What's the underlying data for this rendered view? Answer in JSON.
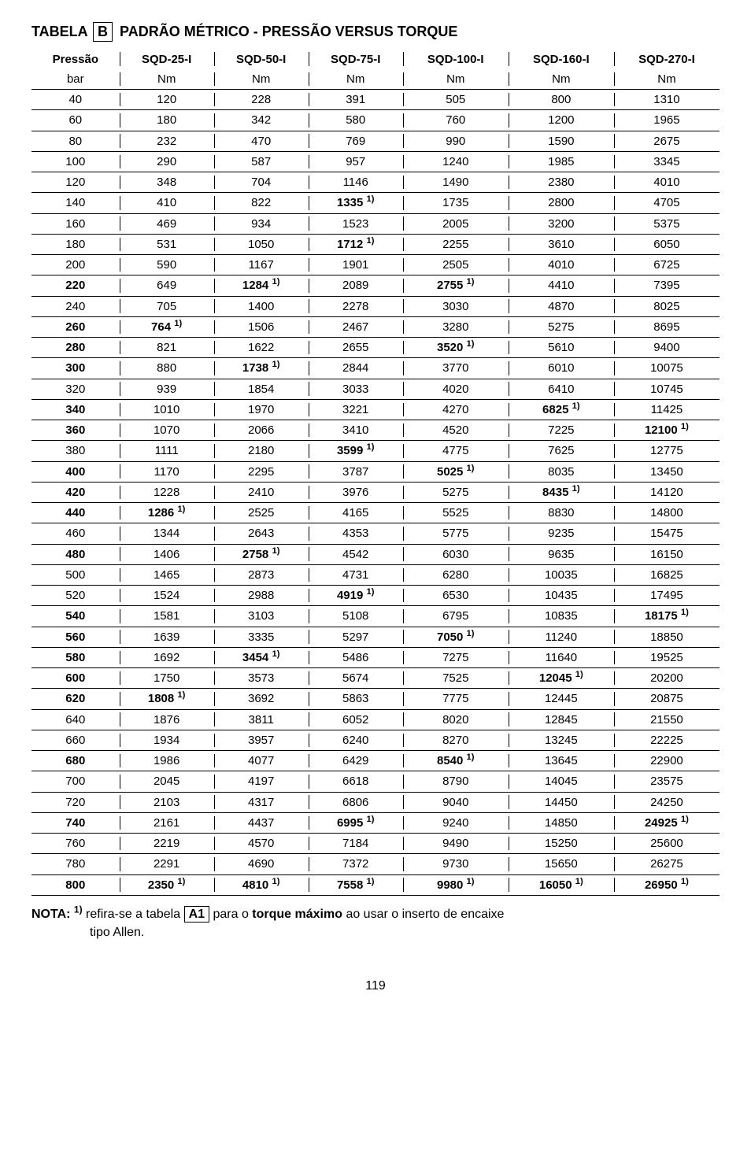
{
  "title_parts": {
    "pre": "TABELA",
    "box": "B",
    "post": "PADRÃO  MÉTRICO - PRESSÃO VERSUS TORQUE"
  },
  "table": {
    "header_row1": [
      "Pressão",
      "SQD-25-I",
      "SQD-50-I",
      "SQD-75-I",
      "SQD-100-I",
      "SQD-160-I",
      "SQD-270-I"
    ],
    "header_row2": [
      "bar",
      "Nm",
      "Nm",
      "Nm",
      "Nm",
      "Nm",
      "Nm"
    ],
    "rows": [
      {
        "c": [
          "40",
          "120",
          "228",
          "391",
          "505",
          "800",
          "1310"
        ],
        "b": [
          false,
          false,
          false,
          false,
          false,
          false,
          false
        ]
      },
      {
        "c": [
          "60",
          "180",
          "342",
          "580",
          "760",
          "1200",
          "1965"
        ],
        "b": [
          false,
          false,
          false,
          false,
          false,
          false,
          false
        ]
      },
      {
        "c": [
          "80",
          "232",
          "470",
          "769",
          "990",
          "1590",
          "2675"
        ],
        "b": [
          false,
          false,
          false,
          false,
          false,
          false,
          false
        ]
      },
      {
        "c": [
          "100",
          "290",
          "587",
          "957",
          "1240",
          "1985",
          "3345"
        ],
        "b": [
          false,
          false,
          false,
          false,
          false,
          false,
          false
        ]
      },
      {
        "c": [
          "120",
          "348",
          "704",
          "1146",
          "1490",
          "2380",
          "4010"
        ],
        "b": [
          false,
          false,
          false,
          false,
          false,
          false,
          false
        ]
      },
      {
        "c": [
          "140",
          "410",
          "822",
          "1335 1)",
          "1735",
          "2800",
          "4705"
        ],
        "b": [
          false,
          false,
          false,
          true,
          false,
          false,
          false
        ]
      },
      {
        "c": [
          "160",
          "469",
          "934",
          "1523",
          "2005",
          "3200",
          "5375"
        ],
        "b": [
          false,
          false,
          false,
          false,
          false,
          false,
          false
        ]
      },
      {
        "c": [
          "180",
          "531",
          "1050",
          "1712 1)",
          "2255",
          "3610",
          "6050"
        ],
        "b": [
          false,
          false,
          false,
          true,
          false,
          false,
          false
        ]
      },
      {
        "c": [
          "200",
          "590",
          "1167",
          "1901",
          "2505",
          "4010",
          "6725"
        ],
        "b": [
          false,
          false,
          false,
          false,
          false,
          false,
          false
        ]
      },
      {
        "c": [
          "220",
          "649",
          "1284 1)",
          "2089",
          "2755 1)",
          "4410",
          "7395"
        ],
        "b": [
          true,
          false,
          true,
          false,
          true,
          false,
          false
        ]
      },
      {
        "c": [
          "240",
          "705",
          "1400",
          "2278",
          "3030",
          "4870",
          "8025"
        ],
        "b": [
          false,
          false,
          false,
          false,
          false,
          false,
          false
        ]
      },
      {
        "c": [
          "260",
          "764 1)",
          "1506",
          "2467",
          "3280",
          "5275",
          "8695"
        ],
        "b": [
          true,
          true,
          false,
          false,
          false,
          false,
          false
        ]
      },
      {
        "c": [
          "280",
          "821",
          "1622",
          "2655",
          "3520 1)",
          "5610",
          "9400"
        ],
        "b": [
          true,
          false,
          false,
          false,
          true,
          false,
          false
        ]
      },
      {
        "c": [
          "300",
          "880",
          "1738 1)",
          "2844",
          "3770",
          "6010",
          "10075"
        ],
        "b": [
          true,
          false,
          true,
          false,
          false,
          false,
          false
        ]
      },
      {
        "c": [
          "320",
          "939",
          "1854",
          "3033",
          "4020",
          "6410",
          "10745"
        ],
        "b": [
          false,
          false,
          false,
          false,
          false,
          false,
          false
        ]
      },
      {
        "c": [
          "340",
          "1010",
          "1970",
          "3221",
          "4270",
          "6825 1)",
          "11425"
        ],
        "b": [
          true,
          false,
          false,
          false,
          false,
          true,
          false
        ]
      },
      {
        "c": [
          "360",
          "1070",
          "2066",
          "3410",
          "4520",
          "7225",
          "12100 1)"
        ],
        "b": [
          true,
          false,
          false,
          false,
          false,
          false,
          true
        ]
      },
      {
        "c": [
          "380",
          "1111",
          "2180",
          "3599 1)",
          "4775",
          "7625",
          "12775"
        ],
        "b": [
          false,
          false,
          false,
          true,
          false,
          false,
          false
        ]
      },
      {
        "c": [
          "400",
          "1170",
          "2295",
          "3787",
          "5025 1)",
          "8035",
          "13450"
        ],
        "b": [
          true,
          false,
          false,
          false,
          true,
          false,
          false
        ]
      },
      {
        "c": [
          "420",
          "1228",
          "2410",
          "3976",
          "5275",
          "8435 1)",
          "14120"
        ],
        "b": [
          true,
          false,
          false,
          false,
          false,
          true,
          false
        ]
      },
      {
        "c": [
          "440",
          "1286 1)",
          "2525",
          "4165",
          "5525",
          "8830",
          "14800"
        ],
        "b": [
          true,
          true,
          false,
          false,
          false,
          false,
          false
        ]
      },
      {
        "c": [
          "460",
          "1344",
          "2643",
          "4353",
          "5775",
          "9235",
          "15475"
        ],
        "b": [
          false,
          false,
          false,
          false,
          false,
          false,
          false
        ]
      },
      {
        "c": [
          "480",
          "1406",
          "2758 1)",
          "4542",
          "6030",
          "9635",
          "16150"
        ],
        "b": [
          true,
          false,
          true,
          false,
          false,
          false,
          false
        ]
      },
      {
        "c": [
          "500",
          "1465",
          "2873",
          "4731",
          "6280",
          "10035",
          "16825"
        ],
        "b": [
          false,
          false,
          false,
          false,
          false,
          false,
          false
        ]
      },
      {
        "c": [
          "520",
          "1524",
          "2988",
          "4919 1)",
          "6530",
          "10435",
          "17495"
        ],
        "b": [
          false,
          false,
          false,
          true,
          false,
          false,
          false
        ]
      },
      {
        "c": [
          "540",
          "1581",
          "3103",
          "5108",
          "6795",
          "10835",
          "18175 1)"
        ],
        "b": [
          true,
          false,
          false,
          false,
          false,
          false,
          true
        ]
      },
      {
        "c": [
          "560",
          "1639",
          "3335",
          "5297",
          "7050 1)",
          "11240",
          "18850"
        ],
        "b": [
          true,
          false,
          false,
          false,
          true,
          false,
          false
        ]
      },
      {
        "c": [
          "580",
          "1692",
          "3454 1)",
          "5486",
          "7275",
          "11640",
          "19525"
        ],
        "b": [
          true,
          false,
          true,
          false,
          false,
          false,
          false
        ]
      },
      {
        "c": [
          "600",
          "1750",
          "3573",
          "5674",
          "7525",
          "12045 1)",
          "20200"
        ],
        "b": [
          true,
          false,
          false,
          false,
          false,
          true,
          false
        ]
      },
      {
        "c": [
          "620",
          "1808 1)",
          "3692",
          "5863",
          "7775",
          "12445",
          "20875"
        ],
        "b": [
          true,
          true,
          false,
          false,
          false,
          false,
          false
        ]
      },
      {
        "c": [
          "640",
          "1876",
          "3811",
          "6052",
          "8020",
          "12845",
          "21550"
        ],
        "b": [
          false,
          false,
          false,
          false,
          false,
          false,
          false
        ]
      },
      {
        "c": [
          "660",
          "1934",
          "3957",
          "6240",
          "8270",
          "13245",
          "22225"
        ],
        "b": [
          false,
          false,
          false,
          false,
          false,
          false,
          false
        ]
      },
      {
        "c": [
          "680",
          "1986",
          "4077",
          "6429",
          "8540 1)",
          "13645",
          "22900"
        ],
        "b": [
          true,
          false,
          false,
          false,
          true,
          false,
          false
        ]
      },
      {
        "c": [
          "700",
          "2045",
          "4197",
          "6618",
          "8790",
          "14045",
          "23575"
        ],
        "b": [
          false,
          false,
          false,
          false,
          false,
          false,
          false
        ]
      },
      {
        "c": [
          "720",
          "2103",
          "4317",
          "6806",
          "9040",
          "14450",
          "24250"
        ],
        "b": [
          false,
          false,
          false,
          false,
          false,
          false,
          false
        ]
      },
      {
        "c": [
          "740",
          "2161",
          "4437",
          "6995 1)",
          "9240",
          "14850",
          "24925 1)"
        ],
        "b": [
          true,
          false,
          false,
          true,
          false,
          false,
          true
        ]
      },
      {
        "c": [
          "760",
          "2219",
          "4570",
          "7184",
          "9490",
          "15250",
          "25600"
        ],
        "b": [
          false,
          false,
          false,
          false,
          false,
          false,
          false
        ]
      },
      {
        "c": [
          "780",
          "2291",
          "4690",
          "7372",
          "9730",
          "15650",
          "26275"
        ],
        "b": [
          false,
          false,
          false,
          false,
          false,
          false,
          false
        ]
      },
      {
        "c": [
          "800",
          "2350 1)",
          "4810 1)",
          "7558 1)",
          "9980 1)",
          "16050 1)",
          "26950 1)"
        ],
        "b": [
          true,
          true,
          true,
          true,
          true,
          true,
          true
        ]
      }
    ]
  },
  "note": {
    "label": "NOTA:",
    "sup": "1)",
    "line1a": "refira-se a  tabela",
    "box": "A1",
    "line1b": "para o",
    "bold_phrase": "torque máximo",
    "line1c": "ao usar o inserto de encaixe",
    "line2": "tipo Allen."
  },
  "page_number": "119"
}
